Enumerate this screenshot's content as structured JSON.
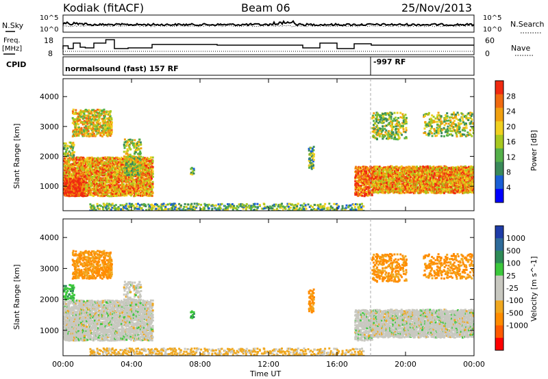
{
  "header": {
    "station": "Kodiak (fitACF)",
    "beam": "Beam 06",
    "date": "25/Nov/2013"
  },
  "strip_labels": {
    "nsky": "N.Sky",
    "nsearch": "N.Search",
    "freq_line1": "Freq.",
    "freq_line2": "[MHz]",
    "nave": "Nave",
    "cpid": "CPID",
    "ticks_noise_left": [
      "10^5",
      "10^0"
    ],
    "ticks_noise_right": [
      "10^5",
      "10^0"
    ],
    "ticks_freq_left": [
      "18",
      "8"
    ],
    "ticks_freq_right": [
      "60",
      "0"
    ]
  },
  "cpid_segments": [
    {
      "text": "normalsound (fast) 157 RF",
      "start_hour": 0
    },
    {
      "text": "-997 RF",
      "start_hour": 18.0
    }
  ],
  "colors": {
    "power": [
      "#0000ff",
      "#1a5fd6",
      "#3a8a5a",
      "#55b04a",
      "#a8c820",
      "#f0d020",
      "#f0a010",
      "#f06a10",
      "#f02a10"
    ],
    "velocity": [
      "#ff0000",
      "#ff5a00",
      "#ff8c00",
      "#f0a820",
      "#c8c8c0",
      "#c8c8c0",
      "#3cc83c",
      "#2e8b57",
      "#2e6b9a",
      "#1e3ca8"
    ]
  },
  "chart_data": [
    {
      "type": "heatmap",
      "name_label": "Power [dB]",
      "ylabel": "Slant Range [km]",
      "xlabel": "",
      "x_ticks": [
        "00:00",
        "04:00",
        "08:00",
        "12:00",
        "16:00",
        "20:00",
        "00:00"
      ],
      "y_ticks": [
        "1000",
        "2000",
        "3000",
        "4000"
      ],
      "xlim_hours": [
        0,
        24
      ],
      "ylim_km": [
        180,
        4600
      ],
      "colorbar_ticks": [
        "4",
        "8",
        "12",
        "16",
        "20",
        "24",
        "28"
      ],
      "colorbar_range": [
        0,
        32
      ]
    },
    {
      "type": "heatmap",
      "name_label": "Velocity [m s^-1]",
      "ylabel": "Slant Range [km]",
      "xlabel": "Time UT",
      "x_ticks": [
        "00:00",
        "04:00",
        "08:00",
        "12:00",
        "16:00",
        "20:00",
        "00:00"
      ],
      "y_ticks": [
        "1000",
        "2000",
        "3000",
        "4000"
      ],
      "xlim_hours": [
        0,
        24
      ],
      "ylim_km": [
        180,
        4600
      ],
      "colorbar_ticks": [
        "1000",
        "500",
        "100",
        "25",
        "-25",
        "-100",
        "-500",
        "-1000"
      ]
    }
  ]
}
